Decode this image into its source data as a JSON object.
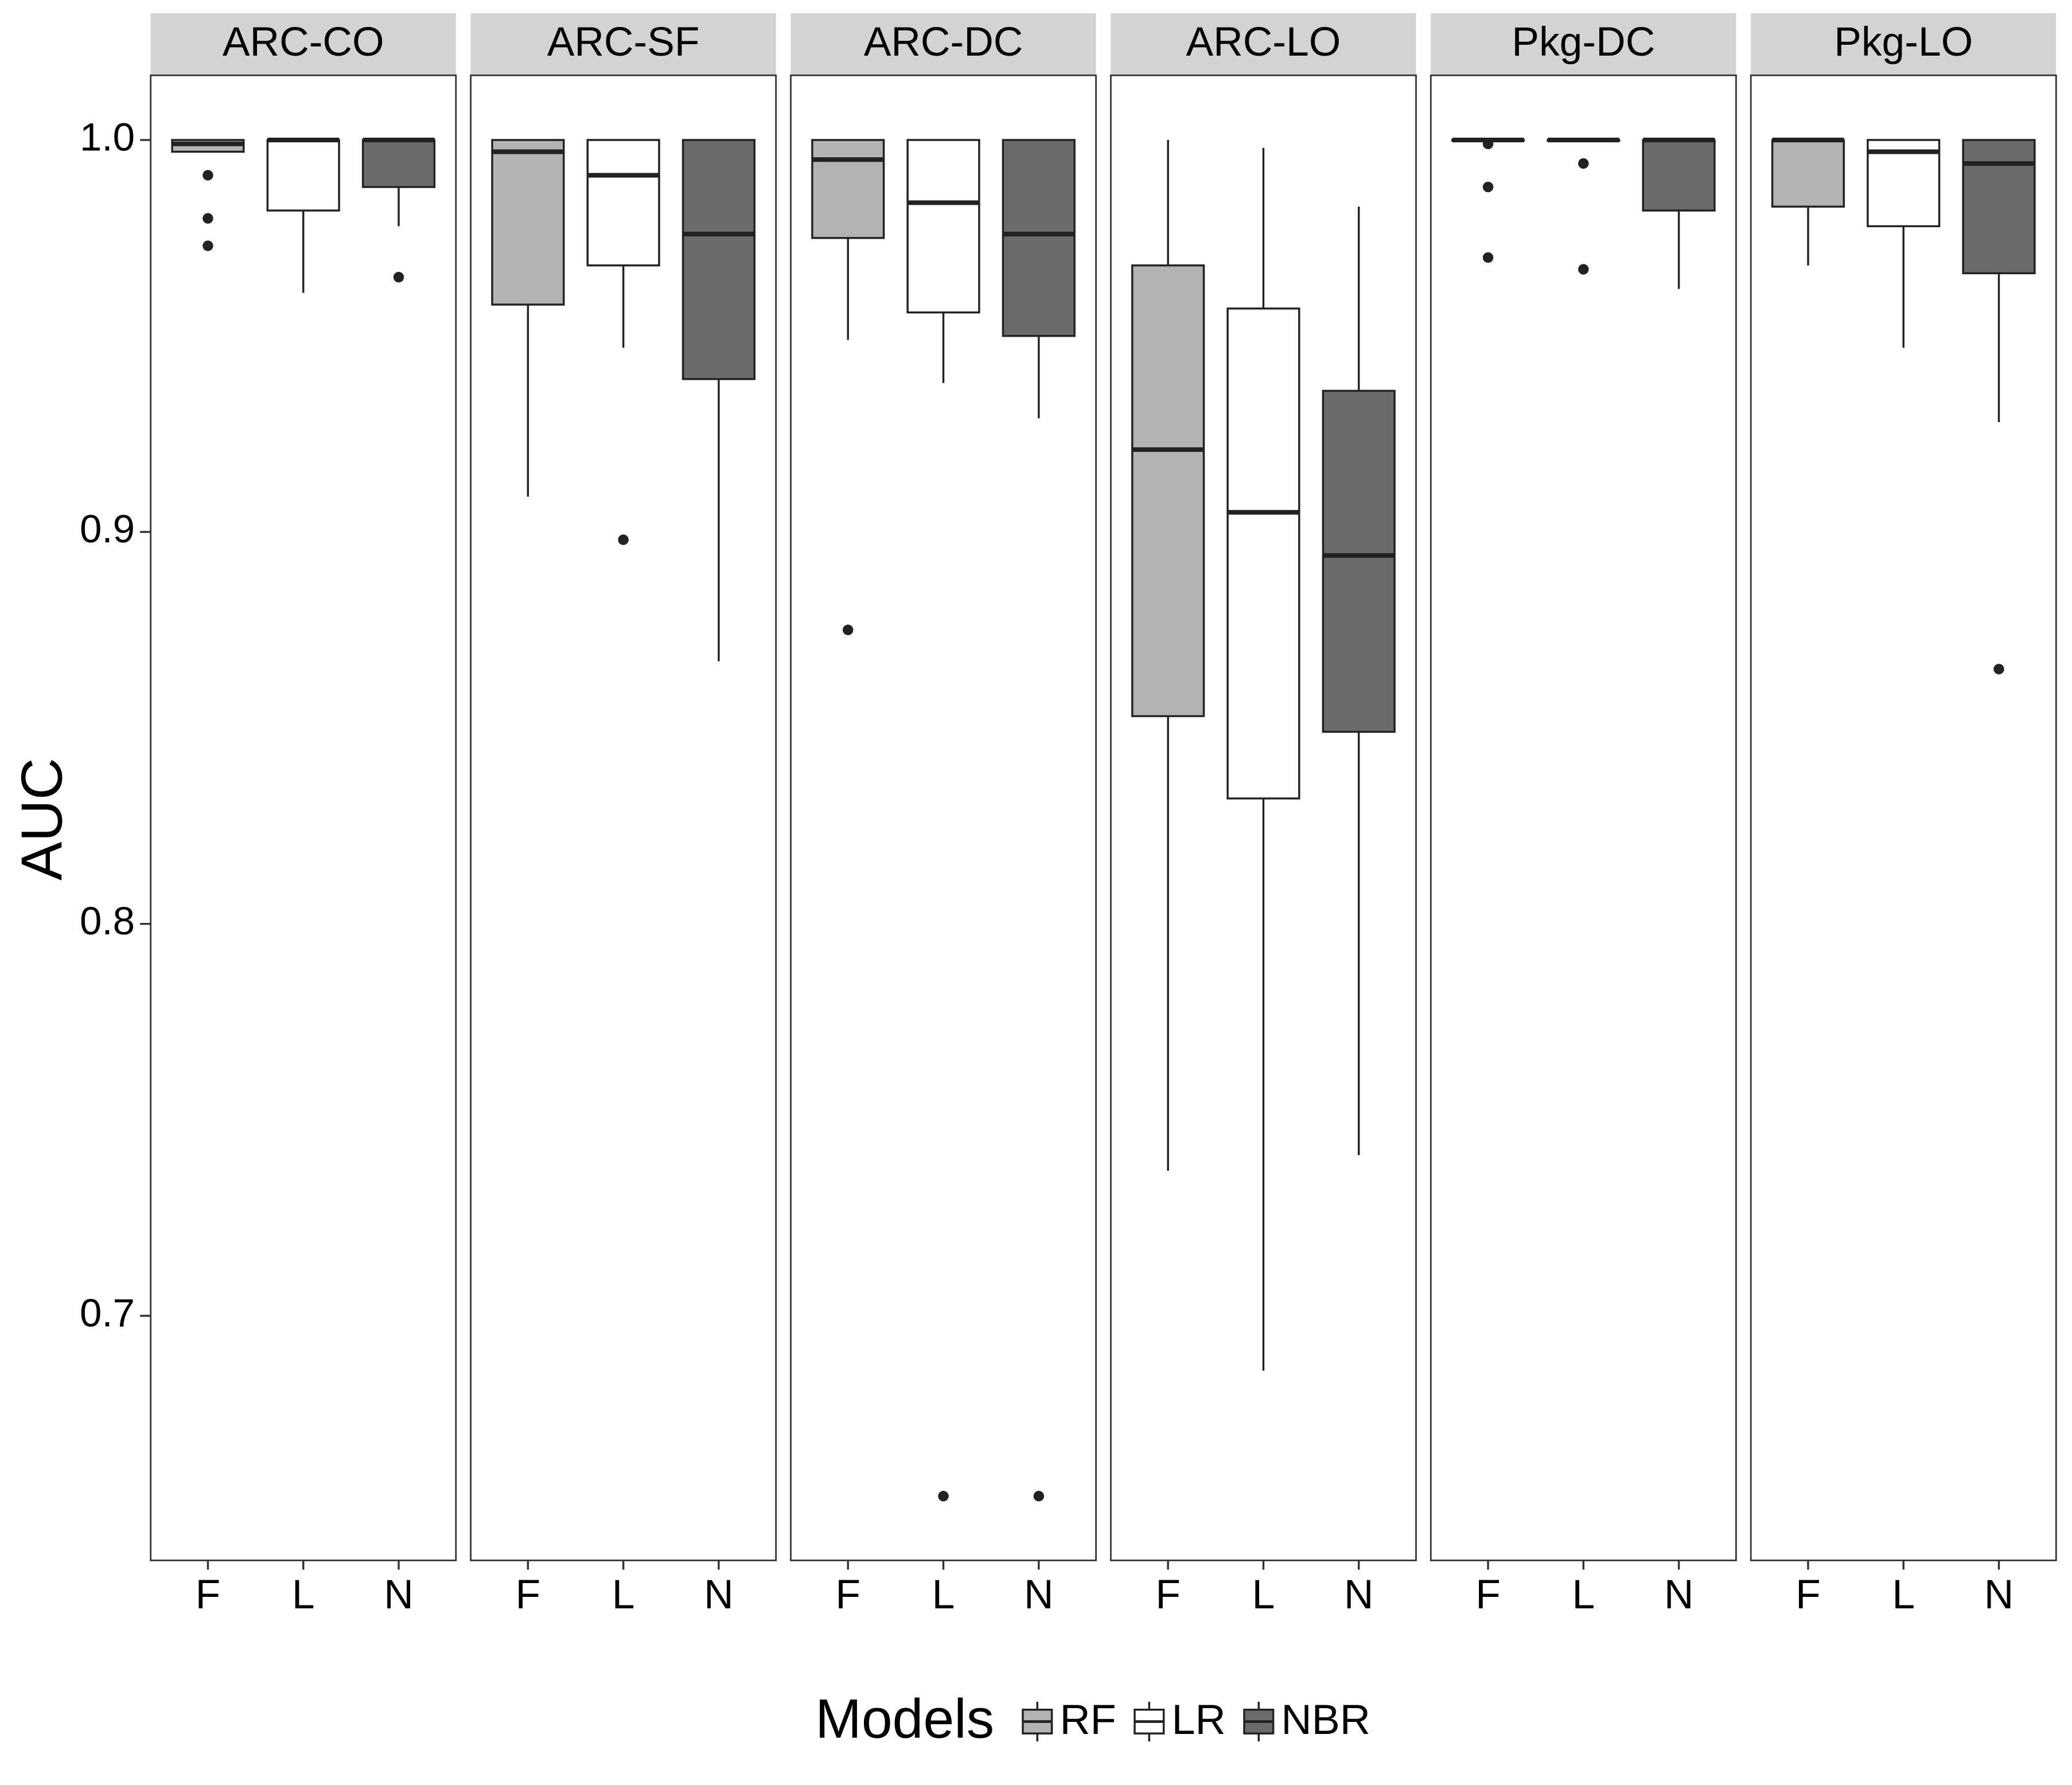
{
  "chart_data": {
    "type": "box",
    "facets": [
      "ARC-CO",
      "ARC-SF",
      "ARC-DC",
      "ARC-LO",
      "Pkg-DC",
      "Pkg-LO"
    ],
    "categories": [
      "F",
      "L",
      "N"
    ],
    "y_label": "AUC",
    "legend_title": "Models",
    "ylim": [
      0.6376,
      1.0165
    ],
    "yticks": [
      0.7,
      0.8,
      0.9,
      {
        "value": 1,
        "label": "1.0"
      }
    ],
    "grid": false,
    "series": [
      {
        "name": "RF",
        "color": "#b3b3b3",
        "stats": [
          {
            "low": 0.997,
            "q1": 0.997,
            "median": 0.999,
            "q3": 1.0,
            "high": 1.0,
            "outliers": [
              0.991,
              0.98,
              0.973
            ]
          },
          {
            "low": 0.909,
            "q1": 0.958,
            "median": 0.997,
            "q3": 1.0,
            "high": 1.0,
            "outliers": []
          },
          {
            "low": 0.949,
            "q1": 0.975,
            "median": 0.995,
            "q3": 1.0,
            "high": 1.0,
            "outliers": [
              0.875
            ]
          },
          {
            "low": 0.737,
            "q1": 0.853,
            "median": 0.921,
            "q3": 0.968,
            "high": 1.0,
            "outliers": []
          },
          {
            "low": 1.0,
            "q1": 1.0,
            "median": 1.0,
            "q3": 1.0,
            "high": 1.0,
            "outliers": [
              0.999,
              0.988,
              0.97
            ]
          },
          {
            "low": 0.968,
            "q1": 0.983,
            "median": 1.0,
            "q3": 1.0,
            "high": 1.0,
            "outliers": []
          }
        ]
      },
      {
        "name": "LR",
        "color": "#ffffff",
        "stats": [
          {
            "low": 0.961,
            "q1": 0.982,
            "median": 1.0,
            "q3": 1.0,
            "high": 1.0,
            "outliers": []
          },
          {
            "low": 0.947,
            "q1": 0.968,
            "median": 0.991,
            "q3": 1.0,
            "high": 1.0,
            "outliers": [
              0.898
            ]
          },
          {
            "low": 0.938,
            "q1": 0.956,
            "median": 0.984,
            "q3": 1.0,
            "high": 1.0,
            "outliers": [
              0.654
            ]
          },
          {
            "low": 0.686,
            "q1": 0.832,
            "median": 0.905,
            "q3": 0.957,
            "high": 0.998,
            "outliers": []
          },
          {
            "low": 1.0,
            "q1": 1.0,
            "median": 1.0,
            "q3": 1.0,
            "high": 1.0,
            "outliers": [
              0.994,
              0.967
            ]
          },
          {
            "low": 0.947,
            "q1": 0.978,
            "median": 0.997,
            "q3": 1.0,
            "high": 1.0,
            "outliers": []
          }
        ]
      },
      {
        "name": "NBR",
        "color": "#6b6b6b",
        "stats": [
          {
            "low": 0.978,
            "q1": 0.988,
            "median": 1.0,
            "q3": 1.0,
            "high": 1.0,
            "outliers": [
              0.965
            ]
          },
          {
            "low": 0.867,
            "q1": 0.939,
            "median": 0.976,
            "q3": 1.0,
            "high": 1.0,
            "outliers": []
          },
          {
            "low": 0.929,
            "q1": 0.95,
            "median": 0.976,
            "q3": 1.0,
            "high": 1.0,
            "outliers": [
              0.654
            ]
          },
          {
            "low": 0.741,
            "q1": 0.849,
            "median": 0.894,
            "q3": 0.936,
            "high": 0.983,
            "outliers": []
          },
          {
            "low": 0.962,
            "q1": 0.982,
            "median": 1.0,
            "q3": 1.0,
            "high": 1.0,
            "outliers": []
          },
          {
            "low": 0.928,
            "q1": 0.966,
            "median": 0.994,
            "q3": 1.0,
            "high": 1.0,
            "outliers": [
              0.865
            ]
          }
        ]
      }
    ]
  }
}
